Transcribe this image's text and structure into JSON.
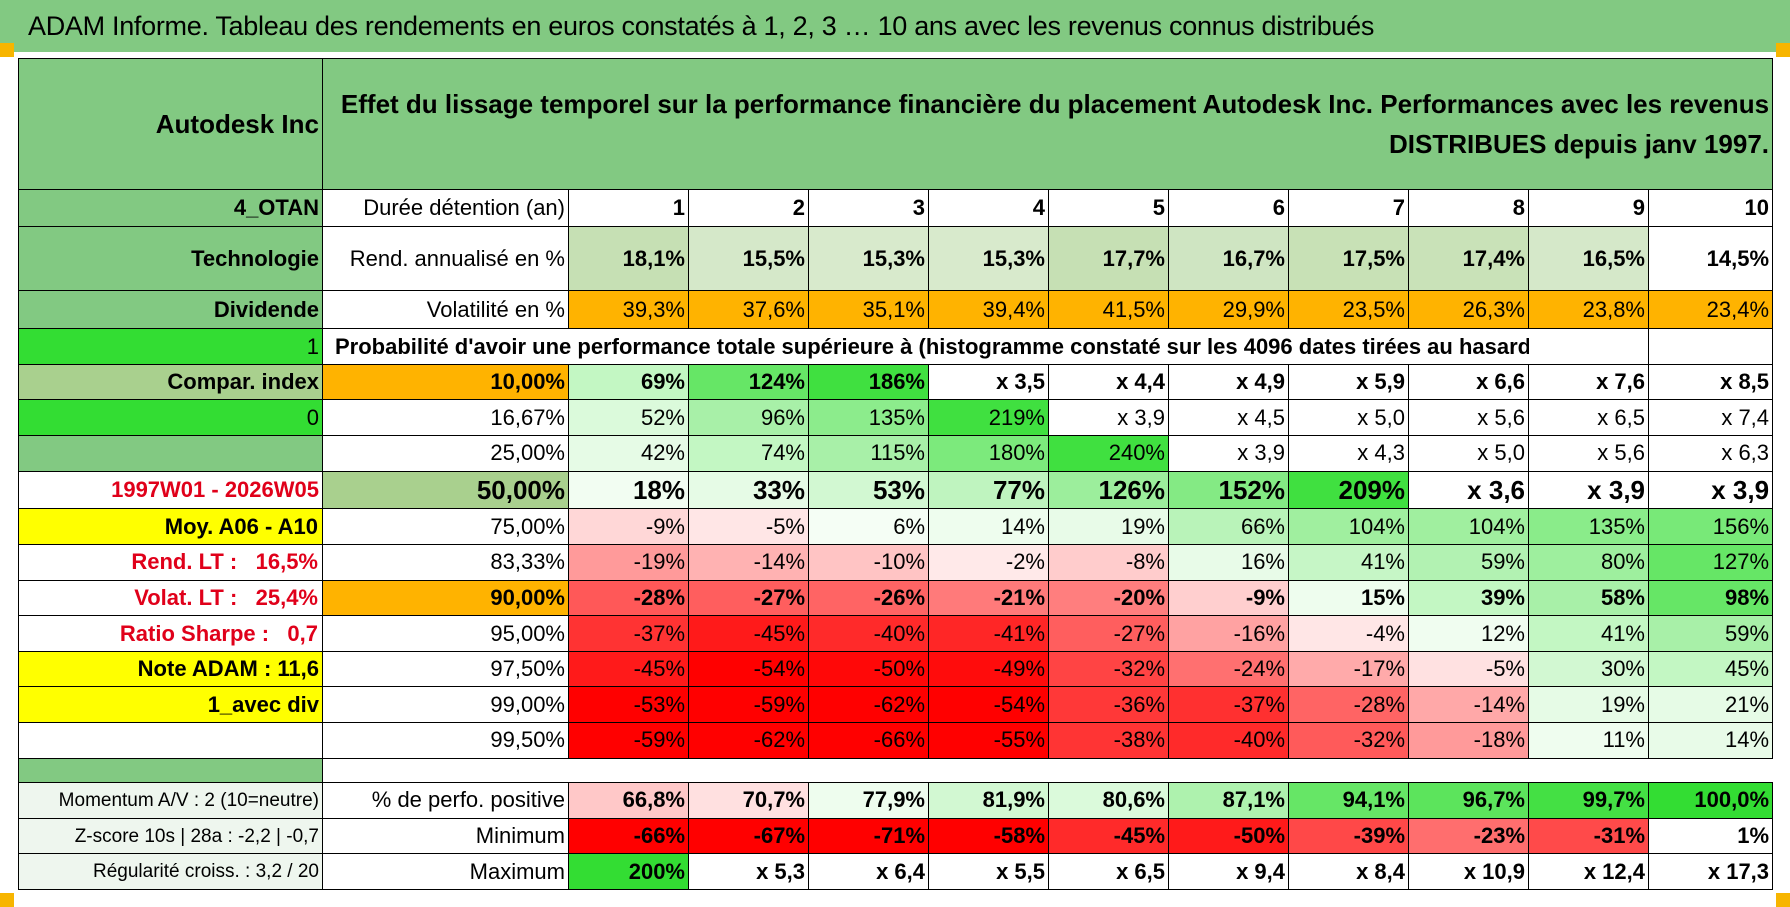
{
  "title": "ADAM Informe. Tableau des rendements en euros constatés à 1, 2, 3 … 10 ans avec les revenus connus distribués",
  "colors": {
    "header_green": "#82c982",
    "bright_green": "#33dd33",
    "yellow": "#ffff00",
    "orange": "#ffb300",
    "red_text": "#e0001a"
  },
  "left": {
    "company": "Autodesk Inc",
    "code": "4_OTAN",
    "sector": "Technologie",
    "dividend_label": "Dividende",
    "flag1": "1",
    "compar_index": "Compar. index",
    "flag0": "0",
    "period": "1997W01 - 2026W05",
    "moy": "Moy. A06 - A10",
    "rend_lt_label": "Rend. LT :",
    "rend_lt_value": "16,5%",
    "volat_lt_label": "Volat. LT :",
    "volat_lt_value": "25,4%",
    "sharpe_label": "Ratio Sharpe :",
    "sharpe_value": "0,7",
    "note": "Note ADAM : 11,6",
    "avec_div": "1_avec div",
    "momentum": "Momentum A/V : 2 (10=neutre)",
    "zscore": "Z-score 10s | 28a : -2,2 | -0,7",
    "regularite": "Régularité croiss. : 3,2 / 20"
  },
  "header_text": "Effet du lissage temporel sur la performance financière du placement Autodesk Inc. Performances avec les revenus DISTRIBUES depuis janv 1997.",
  "durations_label": "Durée détention (an)",
  "durations": [
    "1",
    "2",
    "3",
    "4",
    "5",
    "6",
    "7",
    "8",
    "9",
    "10"
  ],
  "rend_label": "Rend. annualisé en %",
  "rend": [
    "18,1%",
    "15,5%",
    "15,3%",
    "15,3%",
    "17,7%",
    "16,7%",
    "17,5%",
    "17,4%",
    "16,5%",
    "14,5%"
  ],
  "vol_label": "Volatilité en %",
  "vol": [
    "39,3%",
    "37,6%",
    "35,1%",
    "39,4%",
    "41,5%",
    "29,9%",
    "23,5%",
    "26,3%",
    "23,8%",
    "23,4%"
  ],
  "prob_caption": "Probabilité d'avoir une performance totale supérieure à (histogramme constaté sur les 4096 dates tirées au hasard)",
  "prob_rows": [
    {
      "pct": "10,00%",
      "vals": [
        "69%",
        "124%",
        "186%",
        "x 3,5",
        "x 4,4",
        "x 4,9",
        "x 5,9",
        "x 6,6",
        "x 7,6",
        "x 8,5"
      ]
    },
    {
      "pct": "16,67%",
      "vals": [
        "52%",
        "96%",
        "135%",
        "219%",
        "x 3,9",
        "x 4,5",
        "x 5,0",
        "x 5,6",
        "x 6,5",
        "x 7,4"
      ]
    },
    {
      "pct": "25,00%",
      "vals": [
        "42%",
        "74%",
        "115%",
        "180%",
        "240%",
        "x 3,9",
        "x 4,3",
        "x 5,0",
        "x 5,6",
        "x 6,3"
      ]
    },
    {
      "pct": "50,00%",
      "vals": [
        "18%",
        "33%",
        "53%",
        "77%",
        "126%",
        "152%",
        "209%",
        "x 3,6",
        "x 3,9",
        "x 3,9"
      ]
    },
    {
      "pct": "75,00%",
      "vals": [
        "-9%",
        "-5%",
        "6%",
        "14%",
        "19%",
        "66%",
        "104%",
        "104%",
        "135%",
        "156%"
      ]
    },
    {
      "pct": "83,33%",
      "vals": [
        "-19%",
        "-14%",
        "-10%",
        "-2%",
        "-8%",
        "16%",
        "41%",
        "59%",
        "80%",
        "127%"
      ]
    },
    {
      "pct": "90,00%",
      "vals": [
        "-28%",
        "-27%",
        "-26%",
        "-21%",
        "-20%",
        "-9%",
        "15%",
        "39%",
        "58%",
        "98%"
      ]
    },
    {
      "pct": "95,00%",
      "vals": [
        "-37%",
        "-45%",
        "-40%",
        "-41%",
        "-27%",
        "-16%",
        "-4%",
        "12%",
        "41%",
        "59%"
      ]
    },
    {
      "pct": "97,50%",
      "vals": [
        "-45%",
        "-54%",
        "-50%",
        "-49%",
        "-32%",
        "-24%",
        "-17%",
        "-5%",
        "30%",
        "45%"
      ]
    },
    {
      "pct": "99,00%",
      "vals": [
        "-53%",
        "-59%",
        "-62%",
        "-54%",
        "-36%",
        "-37%",
        "-28%",
        "-14%",
        "19%",
        "21%"
      ]
    },
    {
      "pct": "99,50%",
      "vals": [
        "-59%",
        "-62%",
        "-66%",
        "-55%",
        "-38%",
        "-40%",
        "-32%",
        "-18%",
        "11%",
        "14%"
      ]
    }
  ],
  "stats": [
    {
      "label": "% de perfo. positive",
      "vals": [
        "66,8%",
        "70,7%",
        "77,9%",
        "81,9%",
        "80,6%",
        "87,1%",
        "94,1%",
        "96,7%",
        "99,7%",
        "100,0%"
      ]
    },
    {
      "label": "Minimum",
      "vals": [
        "-66%",
        "-67%",
        "-71%",
        "-58%",
        "-45%",
        "-50%",
        "-39%",
        "-23%",
        "-31%",
        "1%"
      ]
    },
    {
      "label": "Maximum",
      "vals": [
        "200%",
        "x 5,3",
        "x 6,4",
        "x 5,5",
        "x 6,5",
        "x 9,4",
        "x 8,4",
        "x 10,9",
        "x 12,4",
        "x 17,3"
      ]
    }
  ],
  "cell_colors": {
    "rend": [
      "#c6e0b4",
      "#d5e8c9",
      "#d8eacc",
      "#d8eacc",
      "#c6e0b4",
      "#cfe5c2",
      "#c8e1b6",
      "#c9e2b8",
      "#d5e8c9",
      "#ffffff"
    ],
    "vol": [
      "#ffb300",
      "#ffb300",
      "#ffb300",
      "#ffb300",
      "#ffb300",
      "#ffb300",
      "#ffb300",
      "#ffb300",
      "#ffb300",
      "#ffb300"
    ],
    "prob": [
      [
        "#c3f7c3",
        "#66e666",
        "#40e040",
        "#ffffff",
        "#ffffff",
        "#ffffff",
        "#ffffff",
        "#ffffff",
        "#ffffff",
        "#ffffff"
      ],
      [
        "#dbfadb",
        "#a8f0a8",
        "#8cec8c",
        "#40e040",
        "#ffffff",
        "#ffffff",
        "#ffffff",
        "#ffffff",
        "#ffffff",
        "#ffffff"
      ],
      [
        "#e6fbe6",
        "#c3f7c3",
        "#a8f0a8",
        "#7cea7c",
        "#40e040",
        "#ffffff",
        "#ffffff",
        "#ffffff",
        "#ffffff",
        "#ffffff"
      ],
      [
        "#f2fdf2",
        "#e6fbe6",
        "#d2f8d2",
        "#bff4bf",
        "#9cee9c",
        "#84ea84",
        "#40e040",
        "#ffffff",
        "#ffffff",
        "#ffffff"
      ],
      [
        "#ffd7d7",
        "#ffe6e6",
        "#f5fef5",
        "#eefdee",
        "#e8fbe8",
        "#b9f3b9",
        "#a0ef9f",
        "#a0ef9f",
        "#8aec8a",
        "#78e978"
      ],
      [
        "#ff9a9a",
        "#ffb2b2",
        "#ffc4c4",
        "#ffe9e9",
        "#ffcccc",
        "#e8fbe8",
        "#c6f6c6",
        "#b2f2b2",
        "#9eef9e",
        "#66e666"
      ],
      [
        "#ff5858",
        "#ff5e5e",
        "#ff6464",
        "#ff7a7a",
        "#ff7e7e",
        "#ffcfcf",
        "#eefdee",
        "#c3f7c3",
        "#a8f0a8",
        "#66e666"
      ],
      [
        "#ff3333",
        "#ff1a1a",
        "#ff2a2a",
        "#ff2626",
        "#ff5e5e",
        "#ffa2a2",
        "#ffe6e6",
        "#f0fdf0",
        "#c3f7c3",
        "#a8f0a8"
      ],
      [
        "#ff1a1a",
        "#ff0000",
        "#ff0808",
        "#ff0c0c",
        "#ff4444",
        "#ff7070",
        "#ffaaaa",
        "#ffe1e1",
        "#d2f8d2",
        "#c3f7c3"
      ],
      [
        "#ff0000",
        "#ff0000",
        "#ff0000",
        "#ff0000",
        "#ff3838",
        "#ff3030",
        "#ff6464",
        "#ffa8a8",
        "#e6fbe6",
        "#e6fbe6"
      ],
      [
        "#ff0000",
        "#ff0000",
        "#ff0000",
        "#ff0000",
        "#ff3434",
        "#ff2a2a",
        "#ff5a5a",
        "#ff9a9a",
        "#effdef",
        "#e8fbe8"
      ]
    ],
    "stats": [
      [
        "#ffc8c8",
        "#ffe0e0",
        "#eefdee",
        "#d2f8d2",
        "#dbfadb",
        "#aef2ae",
        "#66e666",
        "#5ce45c",
        "#44e044",
        "#33dd33"
      ],
      [
        "#ff0000",
        "#ff0000",
        "#ff0000",
        "#ff0000",
        "#ff2a2a",
        "#ff1a1a",
        "#ff4848",
        "#ff6e6e",
        "#ff4a4a",
        "#ffffff"
      ],
      [
        "#33dd33",
        "#ffffff",
        "#ffffff",
        "#ffffff",
        "#ffffff",
        "#ffffff",
        "#ffffff",
        "#ffffff",
        "#ffffff",
        "#ffffff"
      ]
    ]
  }
}
